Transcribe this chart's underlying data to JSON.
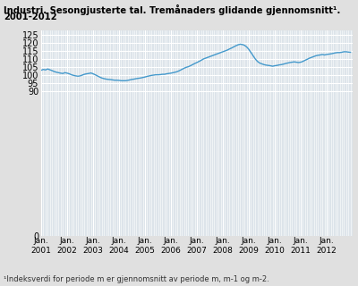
{
  "title_line1": "Industri. Sesongjusterte tal. Tremånaders glidande gjennomsnitt¹.",
  "title_line2": "2001-2012",
  "footnote": "¹Indeksverdi for periode m er gjennomsnitt av periode m, m-1 og m-2.",
  "ylim": [
    0,
    128
  ],
  "yticks": [
    0,
    90,
    95,
    100,
    105,
    110,
    115,
    120,
    125
  ],
  "line_color": "#4499cc",
  "fig_bg_color": "#e0e0e0",
  "plot_bg_color": "#dde4ea",
  "grid_color": "#ffffff",
  "x_tick_years": [
    2001,
    2002,
    2003,
    2004,
    2005,
    2006,
    2007,
    2008,
    2009,
    2010,
    2011,
    2012
  ],
  "series": [
    103.0,
    103.5,
    103.2,
    103.8,
    103.3,
    102.8,
    102.2,
    101.8,
    101.5,
    101.2,
    101.0,
    101.5,
    101.2,
    100.8,
    100.2,
    99.8,
    99.5,
    99.3,
    99.5,
    100.0,
    100.5,
    100.8,
    101.0,
    101.3,
    100.8,
    100.2,
    99.5,
    98.8,
    98.2,
    97.8,
    97.5,
    97.3,
    97.2,
    97.0,
    96.8,
    96.8,
    96.7,
    96.5,
    96.5,
    96.5,
    96.7,
    97.0,
    97.3,
    97.5,
    97.8,
    98.0,
    98.2,
    98.5,
    98.8,
    99.2,
    99.5,
    99.8,
    100.0,
    100.2,
    100.2,
    100.3,
    100.5,
    100.5,
    100.8,
    101.0,
    101.2,
    101.5,
    101.8,
    102.2,
    102.8,
    103.5,
    104.2,
    104.8,
    105.2,
    105.8,
    106.5,
    107.2,
    107.8,
    108.5,
    109.2,
    110.0,
    110.5,
    111.0,
    111.5,
    112.0,
    112.5,
    113.0,
    113.5,
    114.0,
    114.5,
    115.0,
    115.5,
    116.2,
    116.8,
    117.5,
    118.2,
    118.8,
    119.2,
    119.0,
    118.5,
    117.5,
    116.0,
    114.0,
    112.0,
    110.0,
    108.5,
    107.5,
    107.0,
    106.5,
    106.2,
    106.0,
    105.8,
    105.5,
    105.8,
    106.0,
    106.3,
    106.5,
    106.8,
    107.2,
    107.5,
    107.8,
    108.0,
    108.2,
    108.0,
    107.8,
    108.0,
    108.5,
    109.2,
    109.8,
    110.5,
    111.0,
    111.5,
    112.0,
    112.3,
    112.5,
    112.8,
    112.5,
    112.8,
    113.0,
    113.2,
    113.5,
    113.8,
    114.0,
    114.0,
    114.2,
    114.5,
    114.5,
    114.3,
    114.2
  ]
}
